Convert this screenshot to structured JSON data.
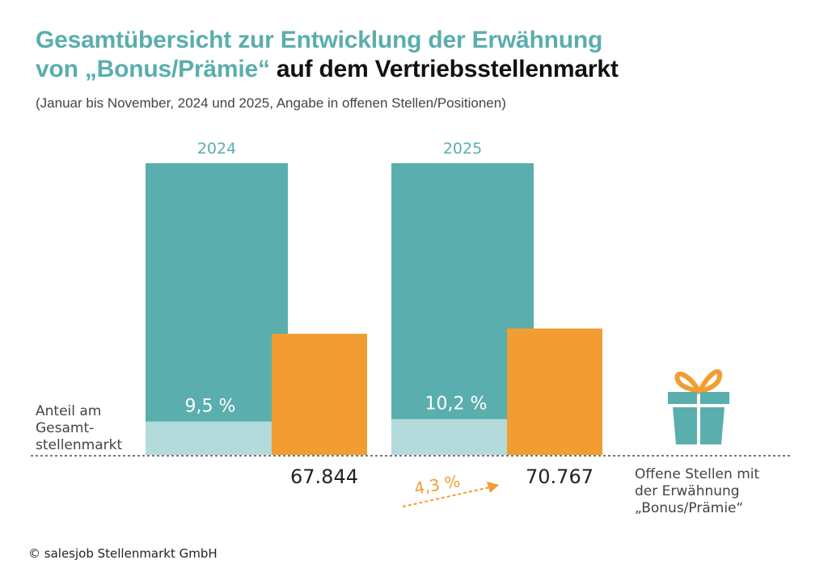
{
  "header": {
    "title_line1": "Gesamtübersicht zur Entwicklung der Erwähnung",
    "title_line2_accent": "von „Bonus/Prämie“",
    "title_line2_dark": " auf dem Vertriebsstellenmarkt",
    "subtitle": "(Januar bis November, 2024 und 2025, Angabe in offenen Stellen/Positionen)"
  },
  "colors": {
    "teal": "#5aaead",
    "light_teal": "#b3dbdb",
    "orange": "#f29d32",
    "text_dark": "#222222",
    "text_gray": "#444444",
    "title_teal": "#5aaead"
  },
  "chart_data": {
    "type": "bar",
    "title": "Gesamtübersicht zur Entwicklung der Erwähnung von „Bonus/Prämie“ auf dem Vertriebsstellenmarkt",
    "subtitle": "(Januar bis November, 2024 und 2025, Angabe in offenen Stellen/Positionen)",
    "categories": [
      "2024",
      "2025"
    ],
    "series": [
      {
        "name": "Anteil am Gesamtstellenmarkt",
        "values": [
          9.5,
          10.2
        ],
        "labels": [
          "9,5 %",
          "10,2 %"
        ],
        "unit": "%"
      },
      {
        "name": "Offene Stellen mit der Erwähnung „Bonus/Prämie“",
        "values": [
          67844,
          70767
        ],
        "labels": [
          "67.844",
          "70.767"
        ]
      }
    ],
    "share_label": [
      "Anteil am",
      "Gesamt-",
      "stellenmarkt"
    ],
    "legend_label": [
      "Offene Stellen mit",
      "der Erwähnung",
      "„Bonus/Prämie“"
    ],
    "growth": {
      "value": 4.3,
      "label": "4,3 %"
    },
    "gift_icon": "gift-icon",
    "xlabel": "",
    "ylabel": "",
    "grid": false
  },
  "footer": {
    "copyright": "© salesjob Stellenmarkt GmbH"
  }
}
